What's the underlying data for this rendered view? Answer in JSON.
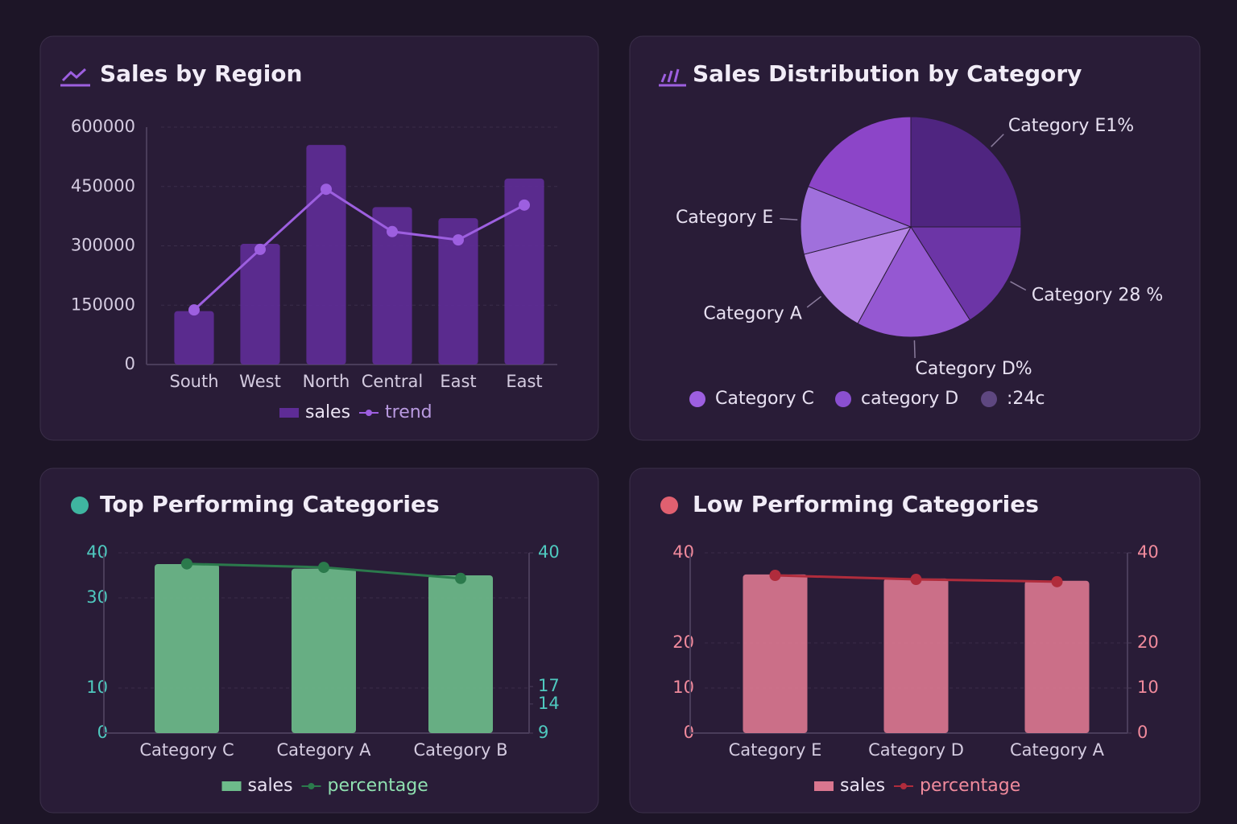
{
  "chart_data": [
    {
      "type": "combo",
      "title": "Sales by Region",
      "categories": [
        "South",
        "West",
        "North",
        "Central",
        "East",
        "East"
      ],
      "series": [
        {
          "name": "sales",
          "kind": "bar",
          "color": "#5e2c96",
          "values": [
            135000,
            305000,
            555000,
            398000,
            370000,
            470000
          ]
        },
        {
          "name": "trend",
          "kind": "line",
          "color": "#9d5fe0",
          "values": [
            138000,
            291000,
            443000,
            336000,
            315000,
            403000
          ]
        }
      ],
      "ylim": [
        0,
        600000
      ],
      "yticks": [
        0,
        150000,
        300000,
        450000,
        600000
      ],
      "grid": true,
      "tick_color": "#d4cbe0"
    },
    {
      "type": "pie",
      "title": "Sales Distribution by Category",
      "categories": [
        "Category E1%",
        "Category 28 %",
        "Category D%",
        "Category A",
        "Category E",
        null
      ],
      "values": [
        25,
        16,
        17,
        13,
        10,
        19
      ],
      "colors": [
        "#4f2580",
        "#6c35a6",
        "#9558d2",
        "#b685e6",
        "#a070dc",
        "#8c45c8"
      ],
      "legend": [
        {
          "name": "Category C",
          "color": "#9d5fe0"
        },
        {
          "name": "category D",
          "color": "#8a4fd0"
        },
        {
          "name": ":24c",
          "color": "#5e4780"
        }
      ]
    },
    {
      "type": "combo",
      "title": "Top Performing Categories",
      "categories": [
        "Category C",
        "Category A",
        "Category B"
      ],
      "series": [
        {
          "name": "sales",
          "kind": "bar",
          "color": "#6dbb8a",
          "values": [
            37.5,
            36.5,
            35
          ]
        },
        {
          "name": "percentage",
          "kind": "line",
          "axis": "y2",
          "color": "#2b7a4c",
          "values": [
            38.1,
            37.5,
            35.6
          ]
        }
      ],
      "ylim": [
        0,
        40
      ],
      "yticks": [
        0,
        10,
        30,
        40
      ],
      "y2lim": [
        9,
        40
      ],
      "y2ticks": [
        9,
        14,
        17,
        40
      ],
      "grid": true,
      "tick_color": "#4fc9bf"
    },
    {
      "type": "combo",
      "title": "Low Performing Categories",
      "categories": [
        "Category E",
        "Category D",
        "Category A"
      ],
      "series": [
        {
          "name": "sales",
          "kind": "bar",
          "color": "#d9768f",
          "values": [
            35.2,
            34.3,
            33.8
          ]
        },
        {
          "name": "percentage",
          "kind": "line",
          "axis": "y2",
          "color": "#b02c3c",
          "values": [
            35,
            34.1,
            33.6
          ]
        }
      ],
      "ylim": [
        0,
        40
      ],
      "yticks": [
        0,
        10,
        20,
        40
      ],
      "y2lim": [
        0,
        40
      ],
      "y2ticks": [
        0,
        10,
        20,
        40
      ],
      "grid": true,
      "tick_color": "#f08a9c"
    }
  ]
}
